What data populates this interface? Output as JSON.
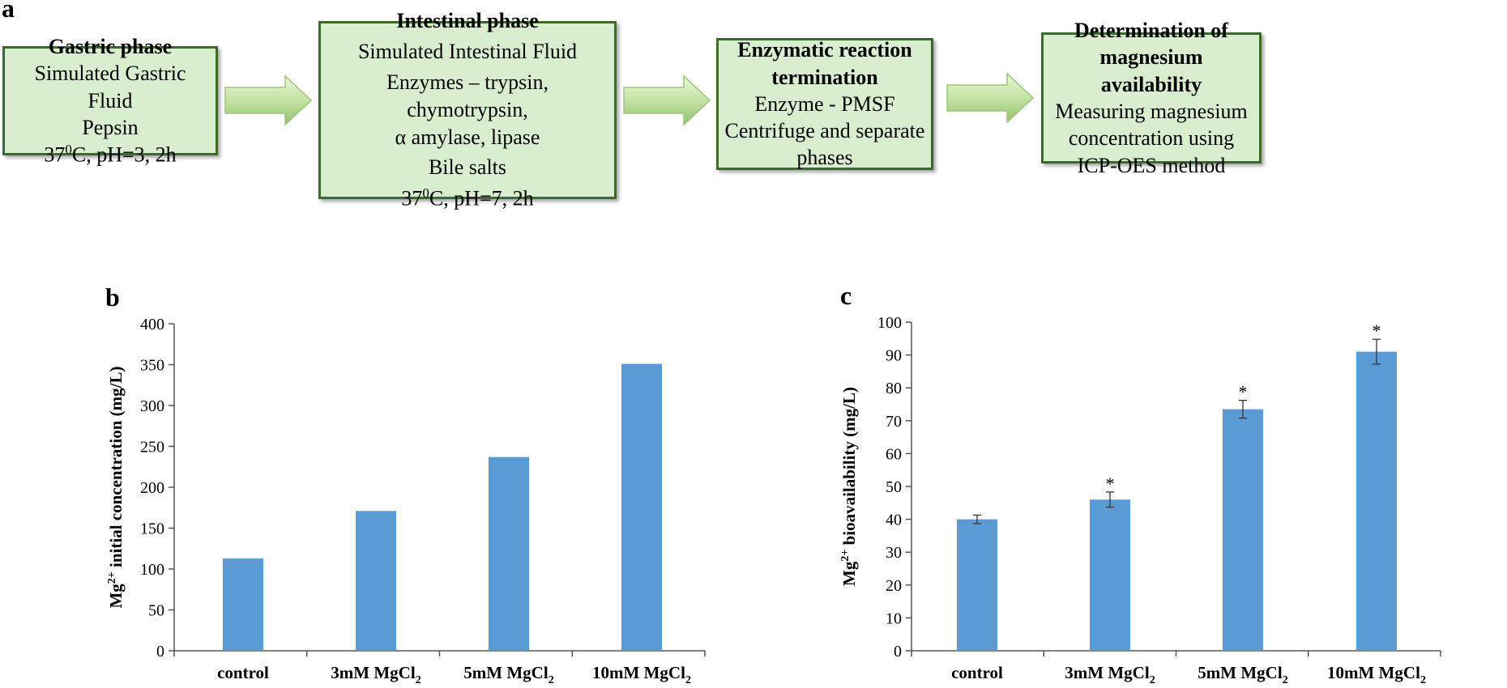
{
  "panel_a": {
    "letter": "a",
    "boxes": [
      {
        "title": "Gastric phase",
        "lines": [
          "Simulated Gastric Fluid",
          "Pepsin"
        ],
        "cond": {
          "pre": "37",
          "sup": "0",
          "post": "C, pH=3, 2h"
        }
      },
      {
        "title": "Intestinal phase",
        "lines": [
          "Simulated Intestinal Fluid",
          "Enzymes – trypsin, chymotrypsin,",
          "α amylase, lipase",
          "Bile salts"
        ],
        "cond": {
          "pre": "37",
          "sup": "0",
          "post": "C, pH=7, 2h"
        }
      },
      {
        "title_lines": [
          "Enzymatic reaction",
          "termination"
        ],
        "lines": [
          "Enzyme - PMSF",
          "Centrifuge and separate",
          "phases"
        ]
      },
      {
        "title_lines": [
          "Determination of",
          "magnesium availability"
        ],
        "lines": [
          "Measuring magnesium",
          "concentration using",
          "ICP-OES method"
        ]
      }
    ]
  },
  "chart_data": [
    {
      "panel": "b",
      "type": "bar",
      "categories": [
        {
          "pre": "control",
          "sub": ""
        },
        {
          "pre": "3mM MgCl",
          "sub": "2"
        },
        {
          "pre": "5mM MgCl",
          "sub": "2"
        },
        {
          "pre": "10mM MgCl",
          "sub": "2"
        }
      ],
      "values": [
        113,
        171,
        237,
        351
      ],
      "ylabel": {
        "pre": "Mg",
        "sup": "2+",
        "post": " initial concentration (mg/L)"
      },
      "ylim": [
        0,
        400
      ],
      "yticks": [
        0,
        50,
        100,
        150,
        200,
        250,
        300,
        350,
        400
      ],
      "bar_color": "#5b9bd5",
      "grid": false
    },
    {
      "panel": "c",
      "type": "bar",
      "categories": [
        {
          "pre": "control",
          "sub": ""
        },
        {
          "pre": "3mM MgCl",
          "sub": "2"
        },
        {
          "pre": "5mM MgCl",
          "sub": "2"
        },
        {
          "pre": "10mM MgCl",
          "sub": "2"
        }
      ],
      "values": [
        40,
        46,
        73.5,
        91
      ],
      "errors": [
        1.3,
        2.3,
        2.7,
        3.8
      ],
      "annotations": [
        "",
        "*",
        "*",
        "*"
      ],
      "ylabel": {
        "pre": "Mg",
        "sup": "2+",
        "post": " bioavailability (mg/L)"
      },
      "ylim": [
        0,
        100
      ],
      "yticks": [
        0,
        10,
        20,
        30,
        40,
        50,
        60,
        70,
        80,
        90,
        100
      ],
      "bar_color": "#5b9bd5",
      "grid": false
    }
  ],
  "colors": {
    "box_fill": "#d9edcf",
    "box_border": "#3c6a2e",
    "arrow_light": "#eaf7d8",
    "arrow_dark": "#92c16a"
  }
}
